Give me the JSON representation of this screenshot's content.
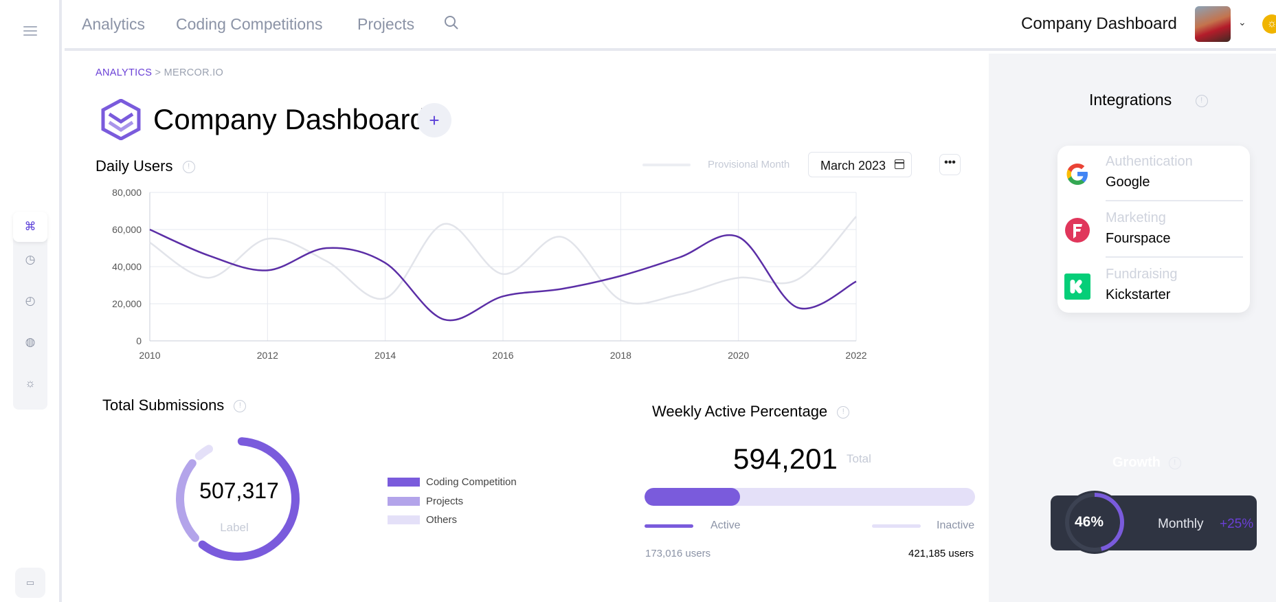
{
  "nav": {
    "items": [
      "Analytics",
      "Coding Competitions",
      "Projects"
    ],
    "title": "Company Dashboard"
  },
  "breadcrumb": {
    "section": "ANALYTICS",
    "separator": " > ",
    "page": "MERCOR.IO"
  },
  "page": {
    "title": "Company Dashboard",
    "add_label": "+"
  },
  "daily_users": {
    "title": "Daily Users",
    "provisional_label": "Provisional Month",
    "month": "March 2023",
    "more_label": "•••"
  },
  "chart_data": {
    "type": "line",
    "x": [
      2010,
      2011,
      2012,
      2013,
      2014,
      2015,
      2016,
      2017,
      2018,
      2019,
      2020,
      2021,
      2022
    ],
    "xticks": [
      "2010",
      "2012",
      "2014",
      "2016",
      "2018",
      "2020",
      "2022"
    ],
    "yticks": [
      "0",
      "20,000",
      "40,000",
      "60,000",
      "80,000"
    ],
    "ylim": [
      0,
      80000
    ],
    "xlim": [
      2010,
      2022
    ],
    "grid": true,
    "series": [
      {
        "values": [
          60000,
          46000,
          38000,
          50000,
          42000,
          11500,
          24000,
          28000,
          35000,
          45000,
          56000,
          18000,
          32000
        ],
        "color": "#5b2ea6"
      },
      {
        "values": [
          53000,
          34000,
          55000,
          43000,
          23000,
          63000,
          36000,
          56000,
          22000,
          25000,
          34000,
          33000,
          67000
        ],
        "color": "#e2e4ea"
      }
    ]
  },
  "submissions": {
    "title": "Total Submissions",
    "value": "507,317",
    "label": "Label",
    "legend": [
      {
        "label": "Coding Competition",
        "color": "#7a5bdc"
      },
      {
        "label": "Projects",
        "color": "#b3a4ea"
      },
      {
        "label": "Others",
        "color": "#e4e0f8"
      }
    ],
    "segments": [
      0.61,
      0.24,
      0.05
    ]
  },
  "weekly": {
    "title": "Weekly Active Percentage",
    "total": "594,201",
    "total_label": "Total",
    "active_fraction": 0.29,
    "active_label": "Active",
    "inactive_label": "Inactive",
    "active_users": "173,016 users",
    "inactive_users": "421,185 users"
  },
  "integrations": {
    "title": "Integrations",
    "items": [
      {
        "category": "Authentication",
        "name": "Google",
        "icon": "google-icon"
      },
      {
        "category": "Marketing",
        "name": "Fourspace",
        "icon": "foursquare-icon"
      },
      {
        "category": "Fundraising",
        "name": "Kickstarter",
        "icon": "kickstarter-icon"
      }
    ]
  },
  "growth": {
    "title": "Growth",
    "percent": "46%",
    "fraction": 0.46,
    "period": "Monthly",
    "delta": "+25%"
  }
}
